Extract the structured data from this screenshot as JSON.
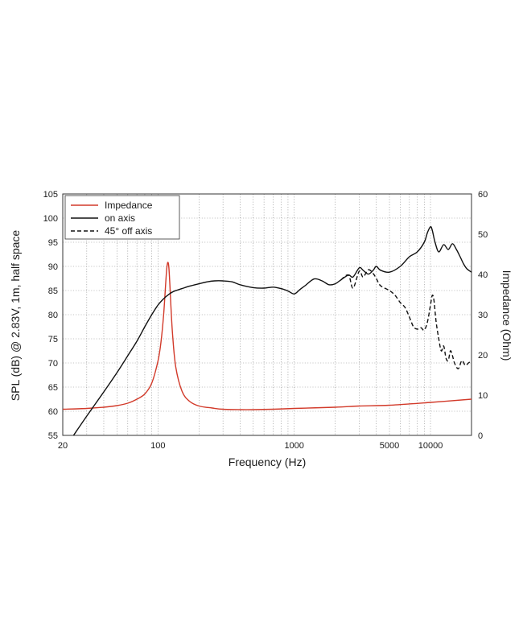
{
  "chart_data": {
    "type": "line",
    "xlabel": "Frequency (Hz)",
    "ylabel_left": "SPL (dB) @ 2.83V, 1m, half space",
    "ylabel_right": "Impedance (Ohm)",
    "xscale": "log",
    "xlim": [
      20,
      20000
    ],
    "ylim_left": [
      55,
      105
    ],
    "ylim_right": [
      0,
      60
    ],
    "x_ticks": [
      20,
      100,
      1000,
      5000,
      10000
    ],
    "x_tick_labels": [
      "20",
      "100",
      "1000",
      "5000",
      "10000"
    ],
    "y_left_ticks": [
      55,
      60,
      65,
      70,
      75,
      80,
      85,
      90,
      95,
      100,
      105
    ],
    "y_left_tick_labels": [
      "55",
      "60",
      "65",
      "70",
      "75",
      "80",
      "85",
      "90",
      "95",
      "100",
      "105"
    ],
    "y_right_ticks": [
      0,
      10,
      20,
      30,
      40,
      50,
      60
    ],
    "y_right_tick_labels": [
      "0",
      "10",
      "20",
      "30",
      "40",
      "50",
      "60"
    ],
    "grid": true,
    "legend_position": "top-left",
    "colors": {
      "impedance": "#d23a2a",
      "on_axis": "#111111",
      "off_axis": "#111111"
    },
    "series": [
      {
        "name": "Impedance",
        "axis": "right",
        "style": "solid",
        "x": [
          20,
          30,
          40,
          50,
          60,
          70,
          80,
          90,
          100,
          105,
          110,
          114,
          116,
          118,
          120,
          122,
          124,
          128,
          135,
          150,
          170,
          200,
          250,
          300,
          400,
          500,
          700,
          1000,
          2000,
          3000,
          5000,
          10000,
          20000
        ],
        "y": [
          6.5,
          6.7,
          7.0,
          7.4,
          8.0,
          9.0,
          10.3,
          13.0,
          18.5,
          23.0,
          30.0,
          38.0,
          41.5,
          43.0,
          42.0,
          38.0,
          33.0,
          25.0,
          17.0,
          11.0,
          8.5,
          7.3,
          6.8,
          6.5,
          6.4,
          6.4,
          6.5,
          6.7,
          7.0,
          7.3,
          7.5,
          8.2,
          9.0
        ]
      },
      {
        "name": "on axis",
        "axis": "left",
        "style": "solid",
        "x": [
          24,
          30,
          40,
          50,
          60,
          70,
          80,
          90,
          100,
          110,
          120,
          130,
          150,
          170,
          200,
          230,
          260,
          300,
          350,
          400,
          500,
          600,
          700,
          800,
          900,
          1000,
          1100,
          1200,
          1400,
          1600,
          1800,
          2000,
          2200,
          2500,
          2700,
          3000,
          3200,
          3500,
          3800,
          4000,
          4300,
          5000,
          6000,
          7000,
          8000,
          9000,
          9500,
          10000,
          10300,
          10800,
          11500,
          12500,
          13500,
          14500,
          15500,
          16500,
          17500,
          18500,
          20000
        ],
        "y": [
          55,
          59,
          64,
          68,
          71.5,
          74.5,
          77.5,
          80,
          82,
          83.3,
          84.2,
          84.8,
          85.4,
          85.9,
          86.4,
          86.8,
          87.0,
          87.0,
          86.8,
          86.2,
          85.6,
          85.5,
          85.7,
          85.4,
          84.9,
          84.3,
          85.2,
          86.0,
          87.4,
          87.0,
          86.2,
          86.4,
          87.2,
          88.2,
          87.8,
          89.7,
          89.2,
          88.4,
          89.2,
          90.0,
          89.2,
          88.8,
          90.0,
          92.0,
          93.0,
          95.0,
          97.0,
          98.2,
          97.5,
          95.0,
          93.0,
          94.5,
          93.5,
          94.7,
          93.5,
          92.0,
          90.5,
          89.5,
          88.8
        ]
      },
      {
        "name": "45° off axis",
        "axis": "left",
        "style": "dashed",
        "x": [
          2200,
          2500,
          2700,
          3000,
          3200,
          3500,
          3800,
          4000,
          4300,
          5000,
          5500,
          6000,
          6500,
          7000,
          7500,
          8000,
          8500,
          9000,
          9500,
          10000,
          10300,
          10600,
          11000,
          11500,
          12000,
          12500,
          13000,
          13500,
          14000,
          14500,
          15000,
          16000,
          17000,
          18000,
          19000,
          20000
        ],
        "y": [
          87.2,
          88.2,
          85.5,
          89.0,
          87.8,
          89.3,
          88.5,
          87.5,
          86.0,
          85.0,
          84.0,
          82.5,
          81.5,
          79.5,
          77.5,
          77.0,
          77.3,
          76.8,
          78.5,
          82.0,
          84.0,
          83.0,
          78.5,
          75.0,
          72.5,
          73.5,
          71.0,
          70.5,
          72.5,
          71.5,
          70.0,
          68.8,
          70.5,
          69.5,
          70.0,
          70.5
        ]
      }
    ]
  }
}
